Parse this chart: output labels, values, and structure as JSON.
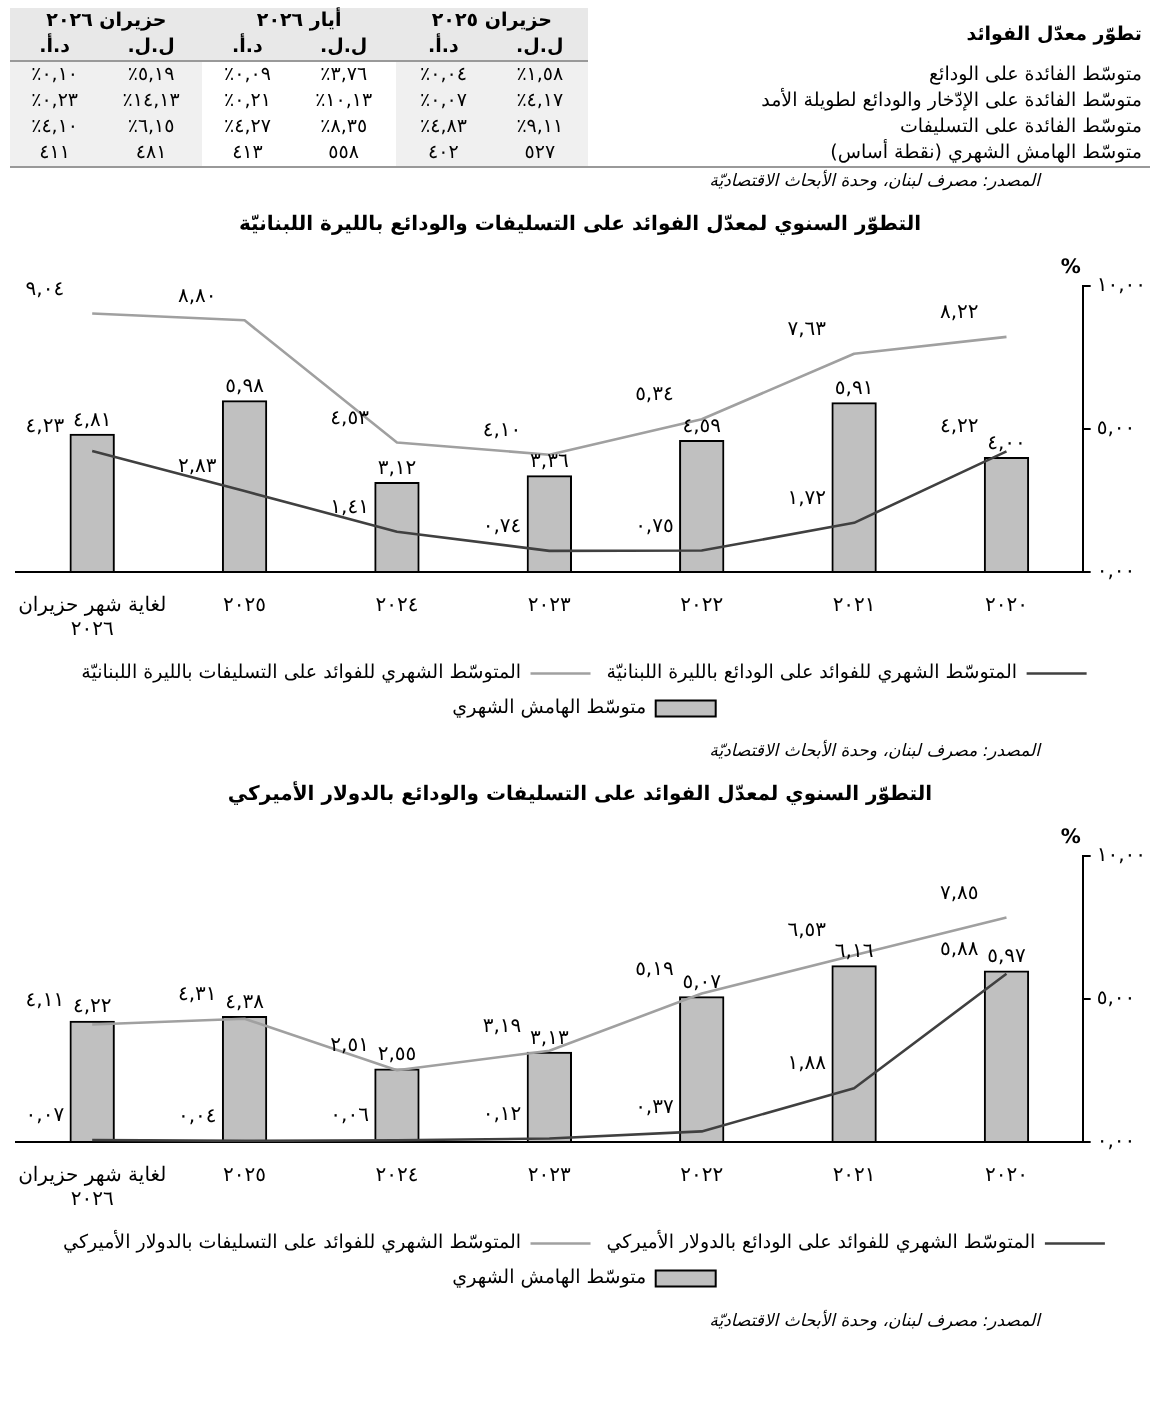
{
  "chart_data": [
    {
      "type": "other",
      "title": "تطوّر معدّل الفوائد",
      "annotations": [
        "حزيران ٢٠٢٥",
        "أيار ٢٠٢٦",
        "حزيران ٢٠٢٦",
        "ل.ل.",
        "د.أ.",
        "ل.ل.",
        "د.أ.",
        "ل.ل.",
        "د.أ.",
        "متوسّط الفائدة على الودائع",
        "١,٥٨٪",
        "٠,٠٤٪",
        "٣,٧٦٪",
        "٠,٠٩٪",
        "٥,١٩٪",
        "٠,١٠٪",
        "متوسّط الفائدة على الإدّخار والودائع لطويلة الأمد",
        "٤,١٧٪",
        "٠,٠٧٪",
        "١٠,١٣٪",
        "٠,٢١٪",
        "١٤,١٣٪",
        "٠,٢٣٪",
        "متوسّط الفائدة على التسليفات",
        "٩,١١٪",
        "٤,٨٣٪",
        "٨,٣٥٪",
        "٤,٢٧٪",
        "٦,١٥٪",
        "٤,١٠٪",
        "متوسّط الهامش الشهري (نقطة أساس)",
        "٥٢٧",
        "٤٠٢",
        "٥٥٨",
        "٤١٣",
        "٤٨١",
        "٤١١",
        "المصدر: مصرف لبنان، وحدة الأبحاث الاقتصاديّة"
      ]
    },
    {
      "type": "bar",
      "title": "التطوّر السنوي لمعدّل الفوائد على التسليفات والودائع بالليرة اللبنانيّة",
      "ylabel": "%",
      "categories": [
        "لغاية شهر حزيران ٢٠٢٦",
        "٢٠٢٥",
        "٢٠٢٤",
        "٢٠٢٣",
        "٢٠٢٢",
        "٢٠٢١",
        "٢٠٢٠"
      ],
      "series": [
        {
          "name": "متوسّط الهامش الشهري",
          "type": "bar",
          "color": "#c0c0c0",
          "values": [
            4.81,
            5.98,
            3.12,
            3.36,
            4.59,
            5.91,
            4.0
          ],
          "value_labels": [
            "٤,٨١",
            "٥,٩٨",
            "٣,١٢",
            "٣,٣٦",
            "٤,٥٩",
            "٥,٩١",
            "٤,٠٠"
          ]
        },
        {
          "name": "المتوسّط الشهري للفوائد على الودائع بالليرة اللبنانيّة",
          "type": "line",
          "color": "#404040",
          "values": [
            4.23,
            2.83,
            1.41,
            0.74,
            0.75,
            1.72,
            4.22
          ],
          "value_labels": [
            "٤,٢٣",
            "٢,٨٣",
            "١,٤١",
            "٠,٧٤",
            "٠,٧٥",
            "١,٧٢",
            "٤,٢٢"
          ]
        },
        {
          "name": "المتوسّط الشهري للفوائد على التسليفات بالليرة اللبنانيّة",
          "type": "line",
          "color": "#a0a0a0",
          "values": [
            9.04,
            8.8,
            4.53,
            4.1,
            5.34,
            7.63,
            8.22
          ],
          "value_labels": [
            "٩,٠٤",
            "٨,٨٠",
            "٤,٥٣",
            "٤,١٠",
            "٥,٣٤",
            "٧,٦٣",
            "٨,٢٢"
          ]
        }
      ],
      "ylim": [
        0,
        10
      ],
      "yticks": [
        {
          "value": 0,
          "label": "٠,٠٠"
        },
        {
          "value": 5,
          "label": "٥,٠٠"
        },
        {
          "value": 10,
          "label": "١٠,٠٠"
        }
      ],
      "legend": "bottom",
      "annotations": [
        "المصدر: مصرف لبنان، وحدة الأبحاث الاقتصاديّة"
      ]
    },
    {
      "type": "bar",
      "title": "التطوّر السنوي لمعدّل الفوائد على التسليفات والودائع بالدولار الأميركي",
      "ylabel": "%",
      "categories": [
        "لغاية شهر حزيران ٢٠٢٦",
        "٢٠٢٥",
        "٢٠٢٤",
        "٢٠٢٣",
        "٢٠٢٢",
        "٢٠٢١",
        "٢٠٢٠"
      ],
      "series": [
        {
          "name": "متوسّط الهامش الشهري",
          "type": "bar",
          "color": "#c0c0c0",
          "values": [
            4.22,
            4.38,
            2.55,
            3.13,
            5.07,
            6.16,
            5.97
          ],
          "value_labels": [
            "٤,٢٢",
            "٤,٣٨",
            "٢,٥٥",
            "٣,١٣",
            "٥,٠٧",
            "٦,١٦",
            "٥,٩٧"
          ]
        },
        {
          "name": "المتوسّط الشهري للفوائد على الودائع بالدولار الأميركي",
          "type": "line",
          "color": "#404040",
          "values": [
            0.07,
            0.04,
            0.06,
            0.12,
            0.37,
            1.88,
            5.88
          ],
          "value_labels": [
            "٠,٠٧",
            "٠,٠٤",
            "٠,٠٦",
            "٠,١٢",
            "٠,٣٧",
            "١,٨٨",
            "٥,٨٨"
          ]
        },
        {
          "name": "المتوسّط الشهري للفوائد على التسليفات بالدولار الأميركي",
          "type": "line",
          "color": "#a0a0a0",
          "values": [
            4.11,
            4.31,
            2.51,
            3.19,
            5.19,
            6.53,
            7.85
          ],
          "value_labels": [
            "٤,١١",
            "٤,٣١",
            "٢,٥١",
            "٣,١٩",
            "٥,١٩",
            "٦,٥٣",
            "٧,٨٥"
          ]
        }
      ],
      "ylim": [
        0,
        10
      ],
      "yticks": [
        {
          "value": 0,
          "label": "٠,٠٠"
        },
        {
          "value": 5,
          "label": "٥,٠٠"
        },
        {
          "value": 10,
          "label": "١٠,٠٠"
        }
      ],
      "legend": "bottom",
      "annotations": [
        "المصدر: مصرف لبنان، وحدة الأبحاث الاقتصاديّة"
      ]
    }
  ]
}
